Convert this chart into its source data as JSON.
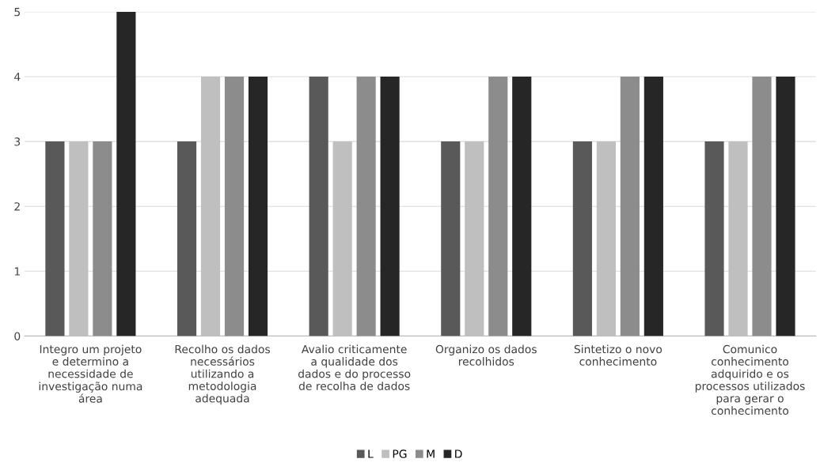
{
  "chart_data": {
    "type": "bar",
    "categories": [
      "Integro um projeto\ne determino a\nnecessidade de\ninvestigação numa\nárea",
      "Recolho os dados\nnecessários\nutilizando a\nmetodologia\nadequada",
      "Avalio criticamente\na qualidade dos\ndados e do processo\nde recolha de dados",
      "Organizo os dados\nrecolhidos",
      "Sintetizo o novo\nconhecimento",
      "Comunico\nconhecimento\nadquirido e os\nprocessos utilizados\npara gerar o\nconhecimento"
    ],
    "series": [
      {
        "name": "L",
        "color": "#595959",
        "values": [
          3,
          3,
          4,
          3,
          3,
          3
        ]
      },
      {
        "name": "PG",
        "color": "#bfbfbf",
        "values": [
          3,
          4,
          3,
          3,
          3,
          3
        ]
      },
      {
        "name": "M",
        "color": "#8c8c8c",
        "values": [
          3,
          4,
          4,
          4,
          4,
          4
        ]
      },
      {
        "name": "D",
        "color": "#262626",
        "values": [
          5,
          4,
          4,
          4,
          4,
          4
        ]
      }
    ],
    "ylim": [
      0,
      5
    ],
    "yticks": [
      0,
      1,
      2,
      3,
      4,
      5
    ],
    "grid": "y",
    "legend": "bottom"
  }
}
